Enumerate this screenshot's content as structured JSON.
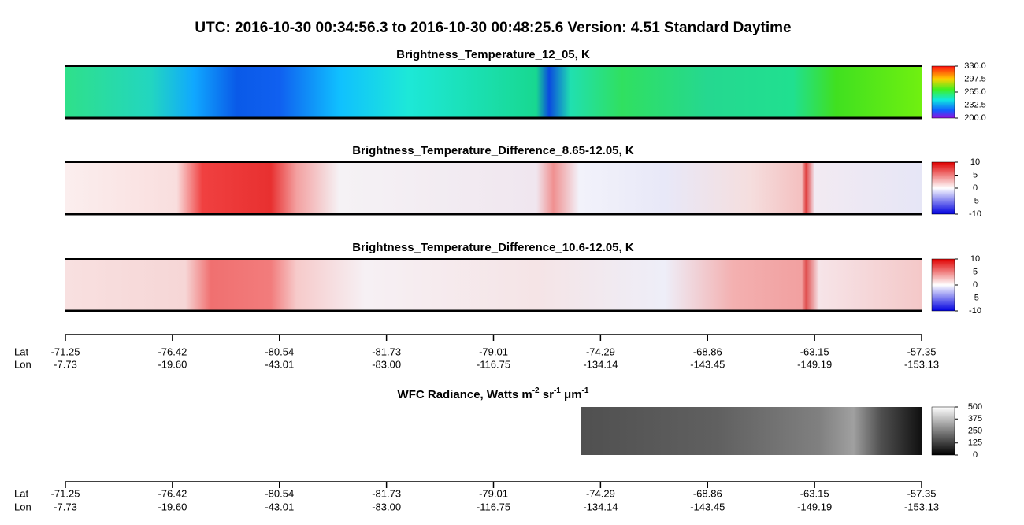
{
  "header": {
    "title": "UTC:  2016-10-30   00:34:56.3  to  2016-10-30   00:48:25.6    Version: 4.51  Standard Daytime"
  },
  "panels": [
    {
      "title": "Brightness_Temperature_12_05, K",
      "colorbar": [
        "330.0",
        "297.5",
        "265.0",
        "232.5",
        "200.0"
      ]
    },
    {
      "title": "Brightness_Temperature_Difference_8.65-12.05, K",
      "colorbar": [
        "10",
        "5",
        "0",
        "-5",
        "-10"
      ]
    },
    {
      "title": "Brightness_Temperature_Difference_10.6-12.05, K",
      "colorbar": [
        "10",
        "5",
        "0",
        "-5",
        "-10"
      ]
    },
    {
      "title_parts": [
        {
          "text": "WFC Radiance, Watts m",
          "sup": false
        },
        {
          "text": "-2",
          "sup": true
        },
        {
          "text": " sr",
          "sup": false
        },
        {
          "text": "-1",
          "sup": true
        },
        {
          "text": " μm",
          "sup": false
        },
        {
          "text": "-1",
          "sup": true
        }
      ],
      "colorbar": [
        "500",
        "375",
        "250",
        "125",
        "0"
      ]
    }
  ],
  "axis": {
    "lat_label": "Lat",
    "lon_label": "Lon",
    "ticks": [
      {
        "lat": "-71.25",
        "lon": "-7.73"
      },
      {
        "lat": "-76.42",
        "lon": "-19.60"
      },
      {
        "lat": "-80.54",
        "lon": "-43.01"
      },
      {
        "lat": "-81.73",
        "lon": "-83.00"
      },
      {
        "lat": "-79.01",
        "lon": "-116.75"
      },
      {
        "lat": "-74.29",
        "lon": "-134.14"
      },
      {
        "lat": "-68.86",
        "lon": "-143.45"
      },
      {
        "lat": "-63.15",
        "lon": "-149.19"
      },
      {
        "lat": "-57.35",
        "lon": "-153.13"
      }
    ]
  }
}
